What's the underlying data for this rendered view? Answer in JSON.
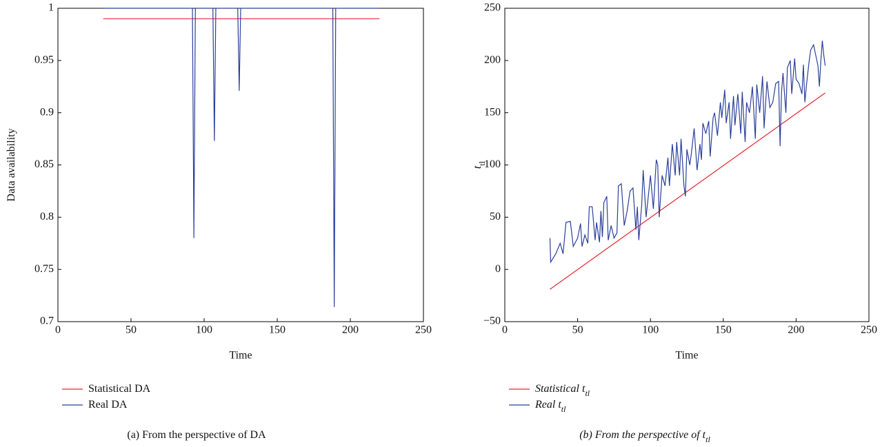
{
  "chart_data": [
    {
      "type": "line",
      "xlabel": "Time",
      "ylabel": "Data availability",
      "caption": "(a)  From the perspective of DA",
      "xlim": [
        0,
        250
      ],
      "xticks": [
        0,
        50,
        100,
        150,
        200,
        250
      ],
      "ylim": [
        0.7,
        1
      ],
      "yticks": [
        0.7,
        0.75,
        0.8,
        0.85,
        0.9,
        0.95,
        1
      ],
      "grid": false,
      "series": [
        {
          "name": "Statistical DA",
          "color": "#e8242c",
          "x": [
            31,
            220
          ],
          "values": [
            0.99,
            0.99
          ]
        },
        {
          "name": "Real DA",
          "color": "#2b3f9a",
          "x": [
            31,
            92,
            93,
            94,
            106,
            107,
            108,
            123,
            124,
            125,
            188,
            189,
            190,
            220
          ],
          "values": [
            1,
            1,
            0.78,
            1,
            1,
            0.873,
            1,
            1,
            0.921,
            1,
            1,
            0.714,
            1,
            1
          ]
        }
      ]
    },
    {
      "type": "line",
      "xlabel": "Time",
      "ylabel": "t",
      "ylabel_sub": "tl",
      "caption": "(b)  From the perspective of t",
      "caption_sub": "tl",
      "xlim": [
        0,
        250
      ],
      "xticks": [
        0,
        50,
        100,
        150,
        200,
        250
      ],
      "ylim": [
        -50,
        250
      ],
      "yticks": [
        {
          "value": -50,
          "label": "−50"
        },
        0,
        50,
        100,
        150,
        200,
        250
      ],
      "grid": false,
      "series": [
        {
          "name": "Statistical t",
          "name_sub": "tl",
          "color": "#e8242c",
          "x": [
            31,
            220
          ],
          "values": [
            -19,
            169
          ]
        },
        {
          "name": "Real t",
          "name_sub": "tl",
          "color": "#2b3f9a",
          "x": [
            31,
            31.5,
            35,
            38,
            40,
            42,
            45,
            47,
            50,
            52,
            53,
            55,
            57,
            58,
            60,
            62,
            63,
            65,
            66,
            67,
            68,
            70,
            71,
            73,
            75,
            77,
            78,
            80,
            82,
            84,
            86,
            88,
            90,
            91,
            92,
            94,
            95,
            97,
            98,
            100,
            102,
            104,
            105,
            106,
            108,
            110,
            112,
            113,
            115,
            117,
            118,
            120,
            121,
            123,
            124,
            125,
            127,
            128,
            130,
            132,
            134,
            135,
            136,
            138,
            140,
            141,
            143,
            144,
            146,
            148,
            149,
            151,
            152,
            154,
            155,
            157,
            158,
            160,
            162,
            163,
            165,
            166,
            168,
            170,
            172,
            173,
            175,
            177,
            178,
            180,
            182,
            184,
            186,
            188,
            189,
            190,
            191,
            193,
            194,
            196,
            197,
            199,
            200,
            202,
            204,
            205,
            206,
            207,
            209,
            210,
            212,
            215,
            216,
            217,
            218,
            219,
            220
          ],
          "values": [
            30,
            7,
            15,
            25,
            15,
            45,
            46,
            22,
            30,
            44,
            22,
            33,
            25,
            60,
            60,
            28,
            45,
            26,
            56,
            31,
            64,
            70,
            28,
            42,
            30,
            35,
            80,
            82,
            42,
            56,
            75,
            78,
            38,
            60,
            28,
            62,
            95,
            50,
            63,
            90,
            58,
            105,
            100,
            50,
            90,
            80,
            107,
            80,
            120,
            90,
            122,
            90,
            125,
            80,
            70,
            115,
            100,
            110,
            135,
            95,
            120,
            105,
            140,
            130,
            142,
            108,
            145,
            150,
            128,
            160,
            145,
            172,
            140,
            160,
            125,
            166,
            138,
            168,
            130,
            170,
            122,
            160,
            150,
            175,
            125,
            177,
            150,
            185,
            135,
            180,
            155,
            160,
            178,
            180,
            118,
            170,
            188,
            150,
            193,
            200,
            168,
            202,
            182,
            178,
            168,
            196,
            160,
            175,
            200,
            210,
            215,
            195,
            175,
            200,
            219,
            205,
            195
          ]
        }
      ]
    }
  ]
}
